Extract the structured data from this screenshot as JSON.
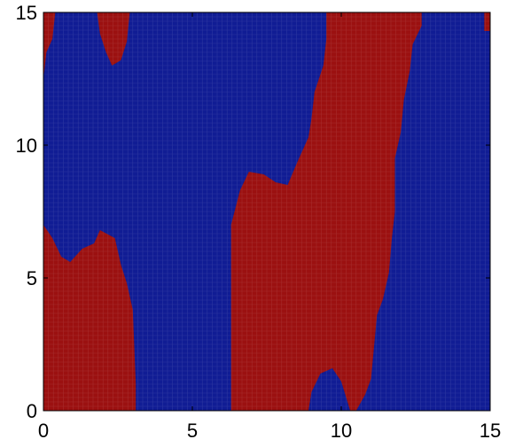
{
  "chart_data": {
    "type": "heatmap",
    "title": "",
    "xlabel": "",
    "ylabel": "",
    "xlim": [
      0,
      15
    ],
    "ylim": [
      0,
      15
    ],
    "x_ticks": [
      {
        "value": 0,
        "label": "0"
      },
      {
        "value": 5,
        "label": "5"
      },
      {
        "value": 10,
        "label": "10"
      },
      {
        "value": 15,
        "label": "15"
      }
    ],
    "y_ticks": [
      {
        "value": 0,
        "label": "0"
      },
      {
        "value": 5,
        "label": "5"
      },
      {
        "value": 10,
        "label": "10"
      },
      {
        "value": 15,
        "label": "15"
      }
    ],
    "grid": false,
    "colors": {
      "phase_a": "#9b1010",
      "phase_b": "#101c94",
      "mesh": "#ffffff",
      "axes": "#000000"
    },
    "red_regions": [
      {
        "name": "left-bottom",
        "polygon": [
          [
            0,
            0
          ],
          [
            0,
            7.0
          ],
          [
            0.3,
            6.5
          ],
          [
            0.6,
            5.8
          ],
          [
            0.9,
            5.6
          ],
          [
            1.3,
            6.1
          ],
          [
            1.7,
            6.3
          ],
          [
            1.9,
            6.8
          ],
          [
            2.4,
            6.5
          ],
          [
            2.6,
            5.5
          ],
          [
            2.8,
            4.8
          ],
          [
            3.0,
            3.8
          ],
          [
            3.1,
            1.0
          ],
          [
            3.1,
            0
          ]
        ]
      },
      {
        "name": "center",
        "polygon": [
          [
            6.3,
            0
          ],
          [
            6.3,
            7.0
          ],
          [
            6.6,
            8.3
          ],
          [
            6.9,
            9.0
          ],
          [
            7.4,
            8.9
          ],
          [
            7.8,
            8.6
          ],
          [
            8.2,
            8.5
          ],
          [
            8.5,
            9.3
          ],
          [
            8.9,
            10.3
          ],
          [
            9.0,
            11.0
          ],
          [
            9.1,
            12.0
          ],
          [
            9.4,
            13.0
          ],
          [
            9.5,
            14.0
          ],
          [
            9.5,
            15.0
          ],
          [
            12.7,
            15.0
          ],
          [
            12.7,
            14.5
          ],
          [
            12.4,
            13.8
          ],
          [
            12.3,
            12.8
          ],
          [
            12.1,
            11.7
          ],
          [
            12.0,
            10.5
          ],
          [
            11.8,
            9.5
          ],
          [
            11.8,
            7.5
          ],
          [
            11.7,
            6.5
          ],
          [
            11.6,
            5.2
          ],
          [
            11.4,
            4.2
          ],
          [
            11.2,
            3.6
          ],
          [
            11.0,
            1.2
          ],
          [
            10.8,
            0.6
          ],
          [
            10.5,
            0
          ],
          [
            10.3,
            0
          ],
          [
            10.0,
            1.1
          ],
          [
            9.7,
            1.6
          ],
          [
            9.3,
            1.4
          ],
          [
            9.0,
            0.7
          ],
          [
            8.9,
            0
          ],
          [
            6.3,
            0
          ]
        ]
      },
      {
        "name": "top-left-a",
        "polygon": [
          [
            0,
            12.5
          ],
          [
            0.1,
            13.5
          ],
          [
            0.3,
            14.0
          ],
          [
            0.4,
            15
          ],
          [
            0,
            15
          ]
        ]
      },
      {
        "name": "top-left-b",
        "polygon": [
          [
            1.8,
            15
          ],
          [
            1.9,
            14.2
          ],
          [
            2.1,
            13.5
          ],
          [
            2.3,
            13.0
          ],
          [
            2.6,
            13.2
          ],
          [
            2.8,
            13.9
          ],
          [
            2.9,
            15
          ]
        ]
      },
      {
        "name": "top-right",
        "polygon": [
          [
            14.8,
            15
          ],
          [
            14.8,
            14.3
          ],
          [
            15,
            14.3
          ],
          [
            15,
            15
          ]
        ]
      }
    ]
  }
}
